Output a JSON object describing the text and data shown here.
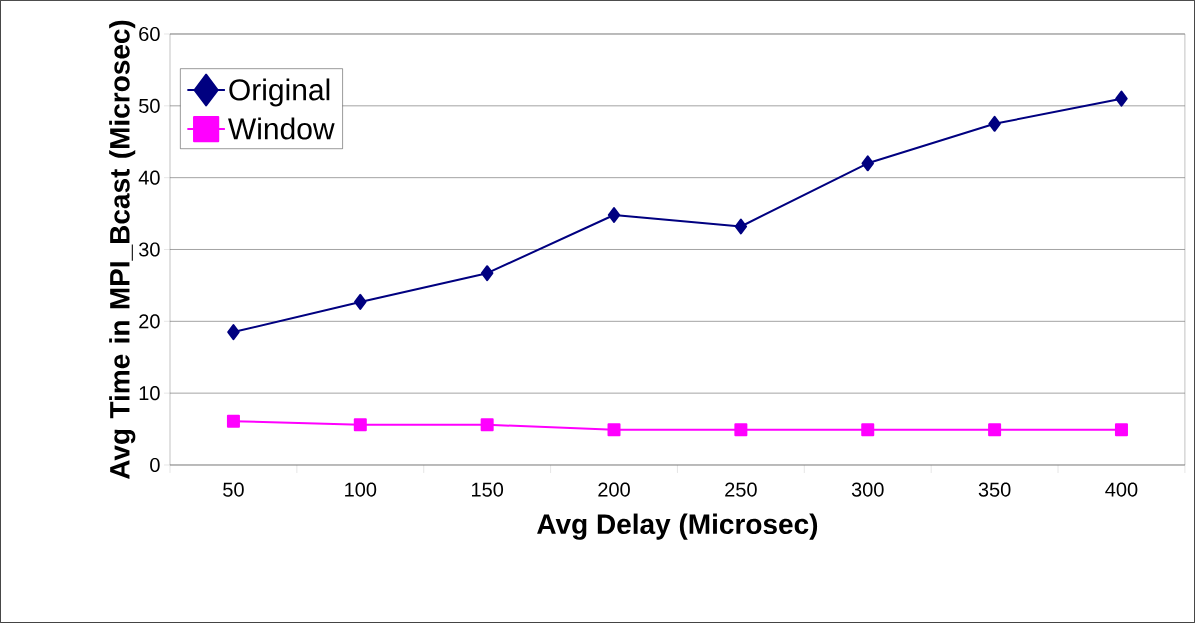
{
  "chart_data": {
    "type": "line",
    "xlabel": "Avg Delay (Microsec)",
    "ylabel": "Avg Time in MPI_Bcast (Microsec)",
    "categories": [
      "50",
      "100",
      "150",
      "200",
      "250",
      "300",
      "350",
      "400"
    ],
    "series": [
      {
        "name": "Original",
        "color": "#000080",
        "marker": "diamond",
        "values": [
          18.5,
          22.7,
          26.7,
          34.8,
          33.2,
          42.0,
          47.5,
          51.0
        ]
      },
      {
        "name": "Window",
        "color": "#ff00ff",
        "marker": "square",
        "values": [
          6.1,
          5.6,
          5.6,
          4.9,
          4.9,
          4.9,
          4.9,
          4.9
        ]
      }
    ],
    "ylim": [
      0,
      60
    ],
    "yticks": [
      0,
      10,
      20,
      30,
      40,
      50,
      60
    ],
    "grid": "y",
    "legend": "top left",
    "line_style": "solid"
  }
}
